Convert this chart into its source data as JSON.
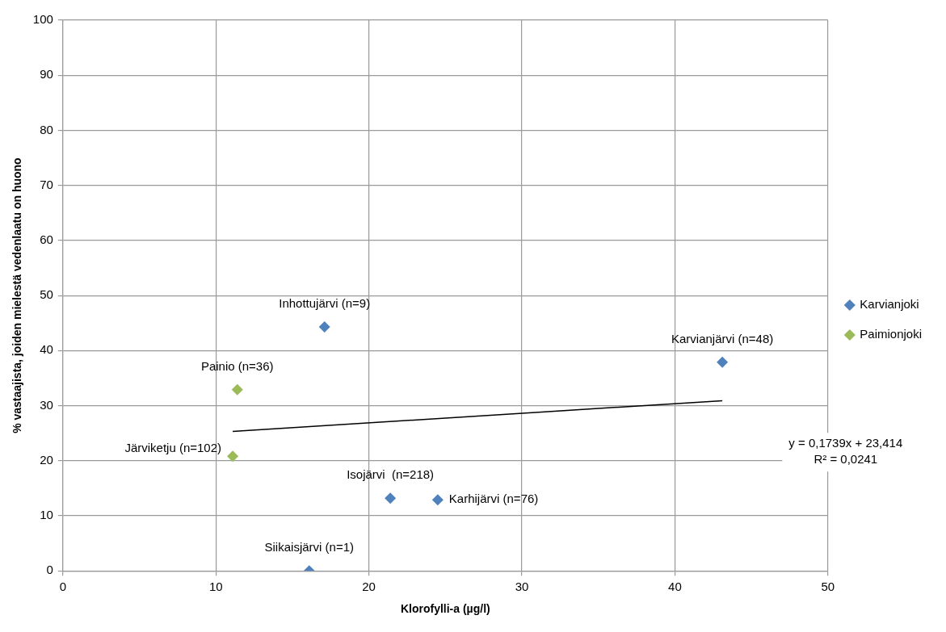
{
  "chart_data": {
    "type": "scatter",
    "xlabel": "Klorofylli-a (µg/l)",
    "ylabel": "% vastaajista, joiden mielestä vedenlaatu on huono",
    "xlim": [
      0,
      50
    ],
    "xticks": [
      0,
      10,
      20,
      30,
      40,
      50
    ],
    "ylim": [
      0,
      100
    ],
    "yticks": [
      0,
      10,
      20,
      30,
      40,
      50,
      60,
      70,
      80,
      90,
      100
    ],
    "grid": true,
    "legend": "right",
    "marker": "diamond",
    "series": [
      {
        "name": "Karvianjoki",
        "color": "#4f81bd",
        "x": [
          17.1,
          43.1,
          21.4,
          24.5,
          16.1
        ],
        "values": [
          44.3,
          37.9,
          13.2,
          12.9,
          0
        ]
      },
      {
        "name": "Paimionjoki",
        "color": "#9bbb59",
        "x": [
          11.4,
          11.1
        ],
        "values": [
          32.9,
          20.8
        ]
      },
      {
        "type": "line",
        "marker": "none",
        "color": "#000000",
        "x": [
          11.1,
          43.1
        ],
        "values": [
          25.3,
          30.9
        ]
      }
    ],
    "annotations": [
      {
        "text": "Inhottujärvi (n=9)",
        "x": 17.1,
        "y": 44.3
      },
      {
        "text": "Karvianjärvi (n=48)",
        "x": 43.1,
        "y": 37.9
      },
      {
        "text": "Isojärvi  (n=218)",
        "x": 21.4,
        "y": 13.2
      },
      {
        "text": "Karhijärvi (n=76)",
        "x": 24.5,
        "y": 12.9
      },
      {
        "text": "Siikaisjärvi (n=1)",
        "x": 16.1,
        "y": 0
      },
      {
        "text": "Painio (n=36)",
        "x": 11.4,
        "y": 32.9
      },
      {
        "text": "Järviketju (n=102)",
        "x": 11.1,
        "y": 20.8
      },
      "y = 0,1739x + 23,414",
      "R² = 0,0241"
    ]
  }
}
